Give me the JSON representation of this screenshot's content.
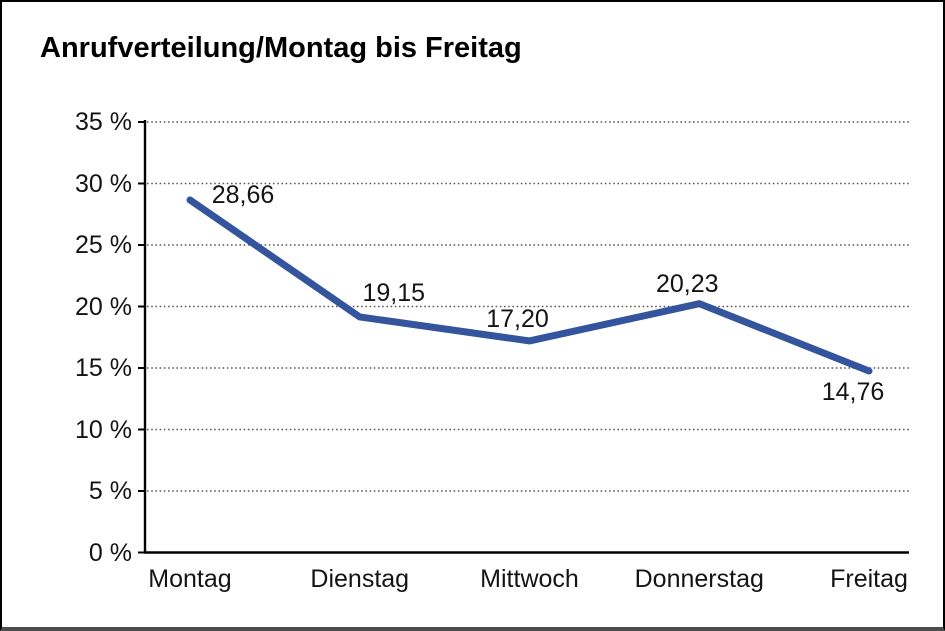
{
  "chart_data": {
    "type": "line",
    "title": "Anrufverteilung/Montag bis Freitag",
    "categories": [
      "Montag",
      "Dienstag",
      "Mittwoch",
      "Donnerstag",
      "Freitag"
    ],
    "values": [
      28.66,
      19.15,
      17.2,
      20.23,
      14.76
    ],
    "value_labels": [
      "28,66",
      "19,15",
      "17,20",
      "20,23",
      "14,76"
    ],
    "series_name": "Anrufverteilung",
    "xlabel": "",
    "ylabel": "",
    "ylim": [
      0,
      35
    ],
    "y_step": 5,
    "y_tick_labels": [
      "0 %",
      "5 %",
      "10 %",
      "15 %",
      "20 %",
      "25 %",
      "30 %",
      "35 %"
    ],
    "grid": "horizontal-dotted",
    "legend": "none",
    "line_color": "#34549E",
    "axis_color": "#000000",
    "gridline_color": "#5a5a5a",
    "text_color": "#141414",
    "background_color": "#ffffff"
  }
}
